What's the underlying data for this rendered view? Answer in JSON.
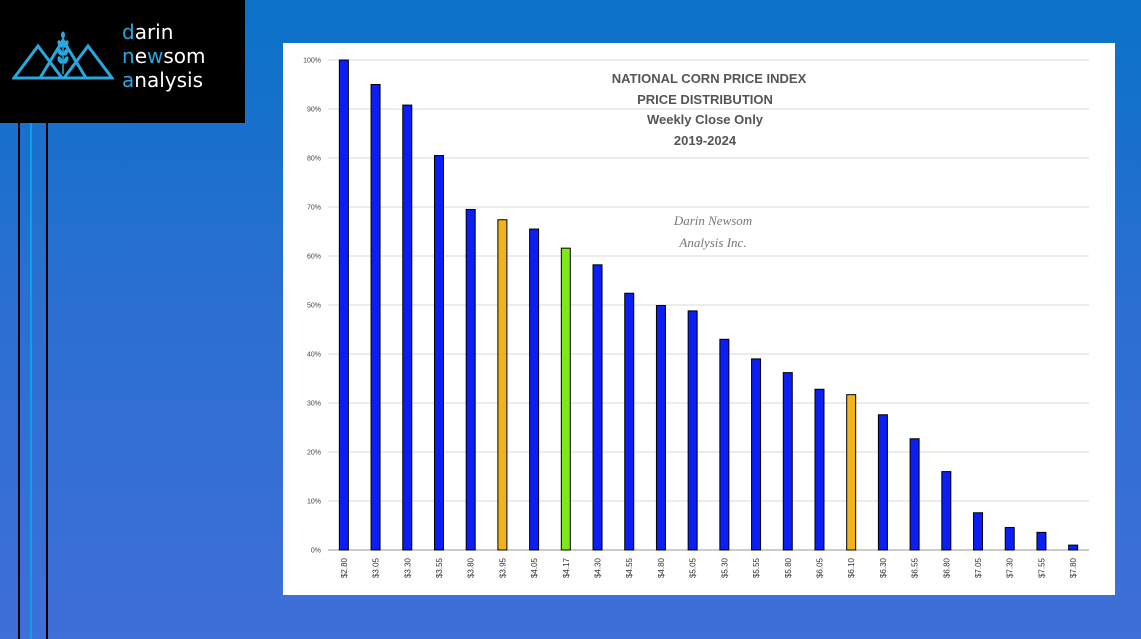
{
  "brand": {
    "line1_first": "d",
    "line1_rest": "arin",
    "line2_first": "n",
    "line2_mid": "e",
    "line2_w": "w",
    "line2_rest": "som",
    "line3_first": "a",
    "line3_rest": "nalysis",
    "accent_color": "#29a8e0"
  },
  "chart_data": {
    "type": "bar",
    "title_lines": [
      "NATIONAL CORN PRICE INDEX",
      "PRICE DISTRIBUTION",
      "Weekly Close Only",
      "2019-2024"
    ],
    "watermark_lines": [
      "Darin Newsom",
      "Analysis Inc."
    ],
    "xlabel": "",
    "ylabel": "",
    "ylim": [
      0,
      100
    ],
    "y_ticks": [
      "0%",
      "10%",
      "20%",
      "30%",
      "40%",
      "50%",
      "60%",
      "70%",
      "80%",
      "90%",
      "100%"
    ],
    "grid": true,
    "categories": [
      "$2.80",
      "$3.05",
      "$3.30",
      "$3.55",
      "$3.80",
      "$3.95",
      "$4.05",
      "$4.17",
      "$4.30",
      "$4.55",
      "$4.80",
      "$5.05",
      "$5.30",
      "$5.55",
      "$5.80",
      "$6.05",
      "$6.10",
      "$6.30",
      "$6.55",
      "$6.80",
      "$7.05",
      "$7.30",
      "$7.55",
      "$7.80"
    ],
    "values": [
      100,
      95,
      90.8,
      80.5,
      69.5,
      67.4,
      65.5,
      61.6,
      58.2,
      52.4,
      49.9,
      48.8,
      43.0,
      39.0,
      36.2,
      32.8,
      31.7,
      27.6,
      22.7,
      16.0,
      7.6,
      4.6,
      3.6,
      1.0
    ],
    "bar_colors": [
      "#0a1ef5",
      "#0a1ef5",
      "#0a1ef5",
      "#0a1ef5",
      "#0a1ef5",
      "#f2b21c",
      "#0a1ef5",
      "#7ee81a",
      "#0a1ef5",
      "#0a1ef5",
      "#0a1ef5",
      "#0a1ef5",
      "#0a1ef5",
      "#0a1ef5",
      "#0a1ef5",
      "#0a1ef5",
      "#f2b21c",
      "#0a1ef5",
      "#0a1ef5",
      "#0a1ef5",
      "#0a1ef5",
      "#0a1ef5",
      "#0a1ef5",
      "#0a1ef5"
    ]
  }
}
